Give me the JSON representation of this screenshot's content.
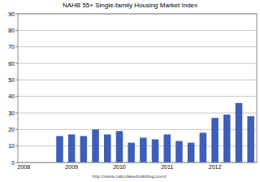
{
  "chart_data": {
    "type": "bar",
    "title": "NAHB 55+ Single-family Housing Market Index",
    "source": "http://www.calculatedriskblog.com/",
    "categories": [
      "2008",
      null,
      null,
      null,
      "2009",
      null,
      null,
      null,
      "2010",
      null,
      null,
      null,
      "2011",
      null,
      null,
      null,
      "2012",
      null,
      null,
      null
    ],
    "values": [
      null,
      null,
      null,
      16,
      17,
      16,
      20,
      17,
      19,
      12,
      15,
      14,
      17,
      13,
      12,
      18,
      27,
      29,
      36,
      28
    ],
    "color": "#3d5fb8",
    "ylim": [
      0,
      90
    ],
    "yticks": [
      0,
      10,
      20,
      30,
      40,
      50,
      60,
      70,
      80,
      90
    ],
    "grid": true
  }
}
